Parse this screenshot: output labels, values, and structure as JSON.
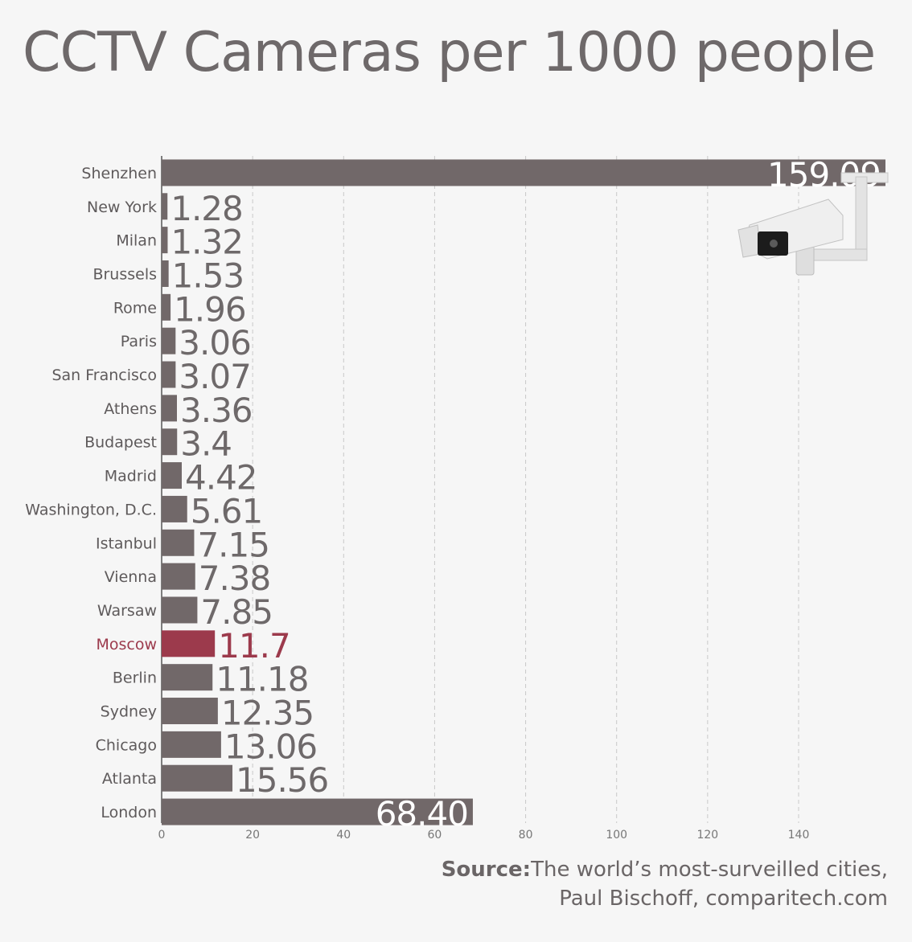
{
  "title": "CCTV Cameras per 1000 people",
  "source": {
    "label": "Source:",
    "line1": "The world’s most-surveilled cities,",
    "line2": "Paul Bischoff, comparitech.com"
  },
  "colors": {
    "bar": "#716869",
    "highlight": "#9c3a4c",
    "grid": "#c9c9c9",
    "text": "#6d6869"
  },
  "chart_data": {
    "type": "bar",
    "orientation": "horizontal",
    "title": "CCTV Cameras per 1000 people",
    "xlim": [
      0,
      159.09
    ],
    "xticks": [
      0,
      20,
      40,
      60,
      80,
      100,
      120,
      140
    ],
    "grid": "vertical dashed",
    "highlight": "Moscow",
    "categories": [
      "Shenzhen",
      "New York",
      "Milan",
      "Brussels",
      "Rome",
      "Paris",
      "San Francisco",
      "Athens",
      "Budapest",
      "Madrid",
      "Washington, D.C.",
      "Istanbul",
      "Vienna",
      "Warsaw",
      "Moscow",
      "Berlin",
      "Sydney",
      "Chicago",
      "Atlanta",
      "London"
    ],
    "values": [
      159.09,
      1.28,
      1.32,
      1.53,
      1.96,
      3.06,
      3.07,
      3.36,
      3.4,
      4.42,
      5.61,
      7.15,
      7.38,
      7.85,
      11.7,
      11.18,
      12.35,
      13.06,
      15.56,
      68.4
    ],
    "labels": [
      "159.09",
      "1.28",
      "1.32",
      "1.53",
      "1.96",
      "3.06",
      "3.07",
      "3.36",
      "3.4",
      "4.42",
      "5.61",
      "7.15",
      "7.38",
      "7.85",
      "11.7",
      "11.18",
      "12.35",
      "13.06",
      "15.56",
      "68.40"
    ]
  }
}
